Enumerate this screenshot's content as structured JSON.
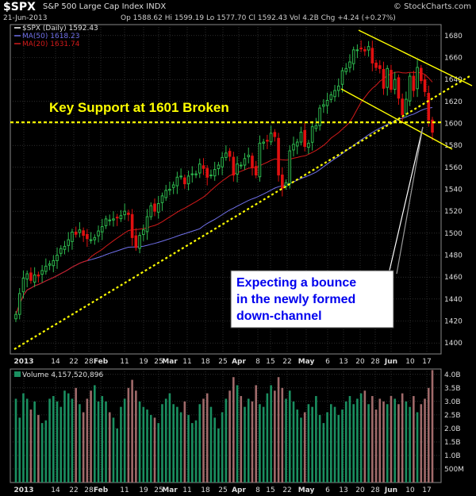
{
  "header": {
    "symbol": "$SPX",
    "name": "S&P 500 Large Cap Index INDX",
    "watermark": "© StockCharts.com",
    "date": "21-Jun-2013",
    "stats": "Op 1588.62  Hi 1599.19  Lo 1577.70  Cl 1592.43  Vol 4.2B  Chg +4.24 (+0.27%)"
  },
  "colors": {
    "up": "#2db84d",
    "down": "#e01010",
    "ma50": "#6f6fe8",
    "ma20": "#d21a1a",
    "support": "#ffff00",
    "channel": "#ffff00",
    "vol_up": "#1a8f60",
    "vol_down": "#a06a6a",
    "grid": "#4a4a4a",
    "callout_text": "#0000ee",
    "annotation": "#ffff00"
  },
  "chart_data": [
    {
      "type": "candlestick",
      "title": "$SPX (Daily) 1592.43",
      "legend": [
        {
          "label": "$SPX (Daily) 1592.43",
          "color": "#ffffff"
        },
        {
          "label": "MA(50) 1618.23",
          "color": "#6f6fe8"
        },
        {
          "label": "MA(20) 1631.74",
          "color": "#d21a1a"
        }
      ],
      "ylim": [
        1390,
        1690
      ],
      "y_ticks": [
        1400,
        1420,
        1440,
        1460,
        1480,
        1500,
        1520,
        1540,
        1560,
        1580,
        1600,
        1620,
        1640,
        1660,
        1680
      ],
      "x_tick_labels": [
        "2013",
        "14",
        "22",
        "28",
        "Feb",
        "11",
        "19",
        "25",
        "Mar",
        "11",
        "18",
        "25",
        "Apr",
        "8",
        "15",
        "22",
        "May",
        "6",
        "13",
        "20",
        "28",
        "Jun",
        "10",
        "17"
      ],
      "annotations": [
        {
          "text": "Key Support at 1601 Broken",
          "kind": "horizontal-line",
          "value": 1601
        },
        {
          "text": "Expecting a bounce in the newly formed down-channel",
          "kind": "callout-box"
        }
      ],
      "close": [
        1426,
        1445,
        1459,
        1463,
        1457,
        1462,
        1461,
        1466,
        1470,
        1472,
        1475,
        1480,
        1486,
        1488,
        1494,
        1501,
        1499,
        1503,
        1498,
        1495,
        1494,
        1496,
        1502,
        1506,
        1513,
        1512,
        1513,
        1514,
        1516,
        1520,
        1517,
        1496,
        1487,
        1498,
        1503,
        1515,
        1525,
        1520,
        1527,
        1534,
        1539,
        1540,
        1544,
        1551,
        1552,
        1545,
        1552,
        1554,
        1554,
        1563,
        1559,
        1551,
        1553,
        1558,
        1562,
        1569,
        1573,
        1570,
        1553,
        1563,
        1562,
        1568,
        1571,
        1560,
        1553,
        1582,
        1583,
        1584,
        1591,
        1588,
        1553,
        1541,
        1546,
        1575,
        1581,
        1583,
        1592,
        1579,
        1582,
        1597,
        1598,
        1614,
        1617,
        1621,
        1626,
        1630,
        1634,
        1648,
        1650,
        1656,
        1667,
        1667,
        1668,
        1666,
        1670,
        1655,
        1651,
        1650,
        1632,
        1650,
        1631,
        1640,
        1623,
        1608,
        1622,
        1643,
        1630,
        1651,
        1639,
        1629,
        1603,
        1592
      ]
    },
    {
      "type": "bar",
      "title": "Volume 4,157,520,896",
      "ylim": [
        0,
        4.2
      ],
      "y_tick_labels": [
        "500M",
        "1.0B",
        "1.5B",
        "2.0B",
        "2.5B",
        "3.0B",
        "3.5B",
        "4.0B"
      ],
      "y_tick_values": [
        0.5,
        1.0,
        1.5,
        2.0,
        2.5,
        3.0,
        3.5,
        4.0
      ],
      "unit": "B",
      "values": [
        3.1,
        2.4,
        3.3,
        3.1,
        2.7,
        3.0,
        2.5,
        2.2,
        2.3,
        3.1,
        3.2,
        3.0,
        2.8,
        3.4,
        3.3,
        3.1,
        3.5,
        2.9,
        2.6,
        3.1,
        3.4,
        3.6,
        3.0,
        3.2,
        3.0,
        2.6,
        2.4,
        2.0,
        2.8,
        3.1,
        3.5,
        3.8,
        3.4,
        3.0,
        2.8,
        2.7,
        2.5,
        2.4,
        2.2,
        2.9,
        3.1,
        3.3,
        2.9,
        2.8,
        2.6,
        3.0,
        2.5,
        2.2,
        2.3,
        2.9,
        3.1,
        3.3,
        2.8,
        2.4,
        2.0,
        2.6,
        3.1,
        3.4,
        3.9,
        3.6,
        3.2,
        2.8,
        3.1,
        3.0,
        3.6,
        2.9,
        2.8,
        3.3,
        3.6,
        3.4,
        3.9,
        3.5,
        3.1,
        3.4,
        3.0,
        2.7,
        2.4,
        2.6,
        2.9,
        2.8,
        3.2,
        2.5,
        2.2,
        2.6,
        2.9,
        2.8,
        2.5,
        2.7,
        3.0,
        3.2,
        2.9,
        3.1,
        3.3,
        3.4,
        2.9,
        3.2,
        2.7,
        3.1,
        3.0,
        2.9,
        3.2,
        3.1,
        2.9,
        3.3,
        3.0,
        2.8,
        3.2,
        2.6,
        2.9,
        3.1,
        3.5,
        4.16
      ]
    }
  ]
}
